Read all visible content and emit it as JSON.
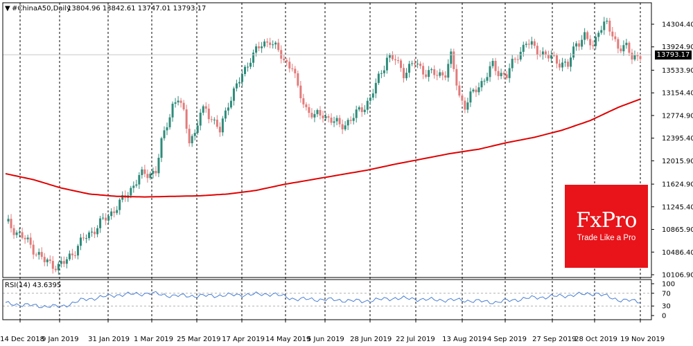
{
  "header": {
    "symbol_arrow": "▼",
    "title": "#ChinaA50,Daily",
    "ohlc": "13804.96 13842.61 13747.01 13793.17"
  },
  "current_price_label": "13793.17",
  "logo": {
    "name": "FxPro",
    "tagline": "Trade Like a Pro"
  },
  "colors": {
    "bull": "#2e8b7a",
    "bear": "#e27a7a",
    "ma": "#e00000",
    "rsi": "#4a7fd4",
    "grid": "#000000",
    "logo_bg": "#e8141a"
  },
  "chart_data": [
    {
      "type": "candlestick",
      "title": "#ChinaA50,Daily",
      "y_ticks": [
        "14304.40",
        "13924.90",
        "13533.90",
        "13154.40",
        "12774.90",
        "12395.40",
        "12015.90",
        "11624.90",
        "11245.40",
        "10865.90",
        "10486.40",
        "10106.90"
      ],
      "x_ticks": [
        "14 Dec 2018",
        "9 Jan 2019",
        "31 Jan 2019",
        "1 Mar 2019",
        "25 Mar 2019",
        "17 Apr 2019",
        "14 May 2019",
        "5 Jun 2019",
        "28 Jun 2019",
        "22 Jul 2019",
        "13 Aug 2019",
        "4 Sep 2019",
        "27 Sep 2019",
        "28 Oct 2019",
        "19 Nov 2019"
      ],
      "ylim": [
        10106.9,
        14304.4
      ],
      "last_price": 13793.17,
      "price_path": [
        [
          0,
          11000
        ],
        [
          8,
          10650
        ],
        [
          14,
          10330
        ],
        [
          19,
          10250
        ],
        [
          21,
          10300
        ],
        [
          28,
          10700
        ],
        [
          36,
          11050
        ],
        [
          42,
          11350
        ],
        [
          48,
          11750
        ],
        [
          54,
          11850
        ],
        [
          56,
          12300
        ],
        [
          58,
          12650
        ],
        [
          60,
          12950
        ],
        [
          62,
          13050
        ],
        [
          64,
          12800
        ],
        [
          66,
          12400
        ],
        [
          68,
          12450
        ],
        [
          70,
          12800
        ],
        [
          72,
          12900
        ],
        [
          75,
          12650
        ],
        [
          77,
          12500
        ],
        [
          80,
          13000
        ],
        [
          84,
          13350
        ],
        [
          88,
          13750
        ],
        [
          92,
          13950
        ],
        [
          95,
          14050
        ],
        [
          97,
          13900
        ],
        [
          100,
          13700
        ],
        [
          103,
          13600
        ],
        [
          105,
          13200
        ],
        [
          108,
          12900
        ],
        [
          111,
          12750
        ],
        [
          114,
          12800
        ],
        [
          117,
          12700
        ],
        [
          120,
          12600
        ],
        [
          124,
          12700
        ],
        [
          128,
          12900
        ],
        [
          131,
          13050
        ],
        [
          134,
          13400
        ],
        [
          137,
          13750
        ],
        [
          140,
          13700
        ],
        [
          143,
          13500
        ],
        [
          147,
          13650
        ],
        [
          151,
          13500
        ],
        [
          155,
          13450
        ],
        [
          158,
          13500
        ],
        [
          160,
          13750
        ],
        [
          163,
          13100
        ],
        [
          165,
          12950
        ],
        [
          168,
          13150
        ],
        [
          172,
          13400
        ],
        [
          175,
          13600
        ],
        [
          177,
          13500
        ],
        [
          180,
          13450
        ],
        [
          184,
          13800
        ],
        [
          187,
          14000
        ],
        [
          190,
          13900
        ],
        [
          192,
          13850
        ],
        [
          195,
          13750
        ],
        [
          198,
          13700
        ],
        [
          202,
          13600
        ],
        [
          205,
          14000
        ],
        [
          208,
          14100
        ],
        [
          211,
          13900
        ],
        [
          213,
          14250
        ],
        [
          216,
          14300
        ],
        [
          218,
          14100
        ],
        [
          220,
          13950
        ],
        [
          223,
          13900
        ],
        [
          225,
          13750
        ],
        [
          228,
          13800
        ]
      ],
      "ma_path": [
        [
          0,
          11800
        ],
        [
          10,
          11700
        ],
        [
          20,
          11560
        ],
        [
          30,
          11460
        ],
        [
          40,
          11420
        ],
        [
          50,
          11410
        ],
        [
          60,
          11420
        ],
        [
          70,
          11430
        ],
        [
          80,
          11460
        ],
        [
          90,
          11520
        ],
        [
          100,
          11620
        ],
        [
          110,
          11700
        ],
        [
          120,
          11780
        ],
        [
          130,
          11860
        ],
        [
          140,
          11960
        ],
        [
          150,
          12050
        ],
        [
          160,
          12140
        ],
        [
          170,
          12210
        ],
        [
          180,
          12320
        ],
        [
          190,
          12410
        ],
        [
          200,
          12530
        ],
        [
          210,
          12690
        ],
        [
          220,
          12910
        ],
        [
          228,
          13050
        ]
      ]
    },
    {
      "type": "line",
      "title": "RSI(14) 43.6395",
      "ylim": [
        0,
        100
      ],
      "y_ticks": [
        "100",
        "70",
        "30",
        "0"
      ],
      "levels": [
        70,
        30
      ],
      "last_value": 43.6395,
      "values_path": [
        [
          0,
          38
        ],
        [
          12,
          30
        ],
        [
          20,
          28
        ],
        [
          28,
          50
        ],
        [
          40,
          65
        ],
        [
          52,
          70
        ],
        [
          60,
          62
        ],
        [
          72,
          62
        ],
        [
          84,
          65
        ],
        [
          96,
          68
        ],
        [
          104,
          52
        ],
        [
          116,
          50
        ],
        [
          128,
          45
        ],
        [
          140,
          55
        ],
        [
          152,
          50
        ],
        [
          164,
          48
        ],
        [
          176,
          42
        ],
        [
          188,
          55
        ],
        [
          200,
          62
        ],
        [
          212,
          70
        ],
        [
          220,
          50
        ],
        [
          228,
          43.6
        ]
      ]
    }
  ]
}
